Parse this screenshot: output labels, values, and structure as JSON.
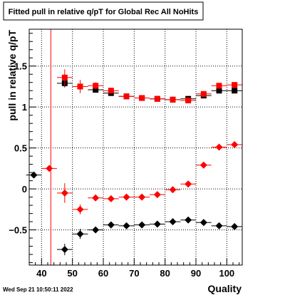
{
  "chart_data": {
    "type": "scatter",
    "title": "Fitted pull in relative q/pT for Global Rec All NoHits",
    "xlabel": "Quality",
    "ylabel": "pull in relative q/pT",
    "xlim": [
      36,
      105
    ],
    "ylim": [
      -0.93,
      1.95
    ],
    "x_ticks": [
      40,
      50,
      60,
      70,
      80,
      90,
      100
    ],
    "y_ticks": [
      -0.5,
      0,
      0.5,
      1,
      1.5
    ],
    "y_tick_labels": [
      "−0.5",
      "0",
      "0.5",
      "1",
      "1.5"
    ],
    "grid": true,
    "legend": "none",
    "vertical_line": {
      "x": 43,
      "color": "#ff0000"
    },
    "timestamp": "Wed Sep 21 10:50:11 2022",
    "series": [
      {
        "marker": "square",
        "color": "#000000",
        "x_err": 2.5,
        "x": [
          47.5,
          52.5,
          57.5,
          62.5,
          67.5,
          72.5,
          77.5,
          82.5,
          87.5,
          92.5,
          97.5,
          102.5
        ],
        "y": [
          1.29,
          1.25,
          1.21,
          1.17,
          1.13,
          1.11,
          1.1,
          1.09,
          1.1,
          1.14,
          1.2,
          1.2
        ],
        "y_err": [
          0.05,
          0.05,
          0.03,
          0.03,
          0.02,
          0.02,
          0.02,
          0.02,
          0.02,
          0.02,
          0.02,
          0.02
        ]
      },
      {
        "marker": "square",
        "color": "#ff0000",
        "x_err": 2.5,
        "x": [
          47.5,
          52.5,
          57.5,
          62.5,
          67.5,
          72.5,
          77.5,
          82.5,
          87.5,
          92.5,
          97.5,
          102.5
        ],
        "y": [
          1.36,
          1.25,
          1.26,
          1.2,
          1.13,
          1.11,
          1.1,
          1.09,
          1.08,
          1.16,
          1.26,
          1.27
        ],
        "y_err": [
          0.1,
          0.08,
          0.04,
          0.03,
          0.02,
          0.02,
          0.02,
          0.02,
          0.02,
          0.02,
          0.02,
          0.02
        ]
      },
      {
        "marker": "diamond",
        "color": "#000000",
        "x_err": 2.5,
        "x": [
          37.5,
          47.5,
          52.5,
          57.5,
          62.5,
          67.5,
          72.5,
          77.5,
          82.5,
          87.5,
          92.5,
          97.5,
          102.5
        ],
        "y": [
          0.17,
          -0.74,
          -0.55,
          -0.5,
          -0.44,
          -0.45,
          -0.44,
          -0.43,
          -0.4,
          -0.38,
          -0.41,
          -0.45,
          -0.46
        ],
        "y_err": [
          0.03,
          0.07,
          0.06,
          0.03,
          0.02,
          0.02,
          0.02,
          0.02,
          0.02,
          0.02,
          0.02,
          0.02,
          0.02
        ]
      },
      {
        "marker": "diamond",
        "color": "#ff0000",
        "x_err": 2.5,
        "x": [
          42.5,
          47.5,
          52.5,
          57.5,
          62.5,
          67.5,
          72.5,
          77.5,
          82.5,
          87.5,
          92.5,
          97.5,
          102.5
        ],
        "y": [
          0.25,
          -0.05,
          -0.25,
          -0.11,
          -0.12,
          -0.1,
          -0.1,
          -0.07,
          -0.01,
          0.06,
          0.29,
          0.51,
          0.54
        ],
        "y_err": [
          0.03,
          0.12,
          0.06,
          0.03,
          0.02,
          0.02,
          0.02,
          0.02,
          0.02,
          0.02,
          0.02,
          0.02,
          0.02
        ]
      }
    ]
  }
}
